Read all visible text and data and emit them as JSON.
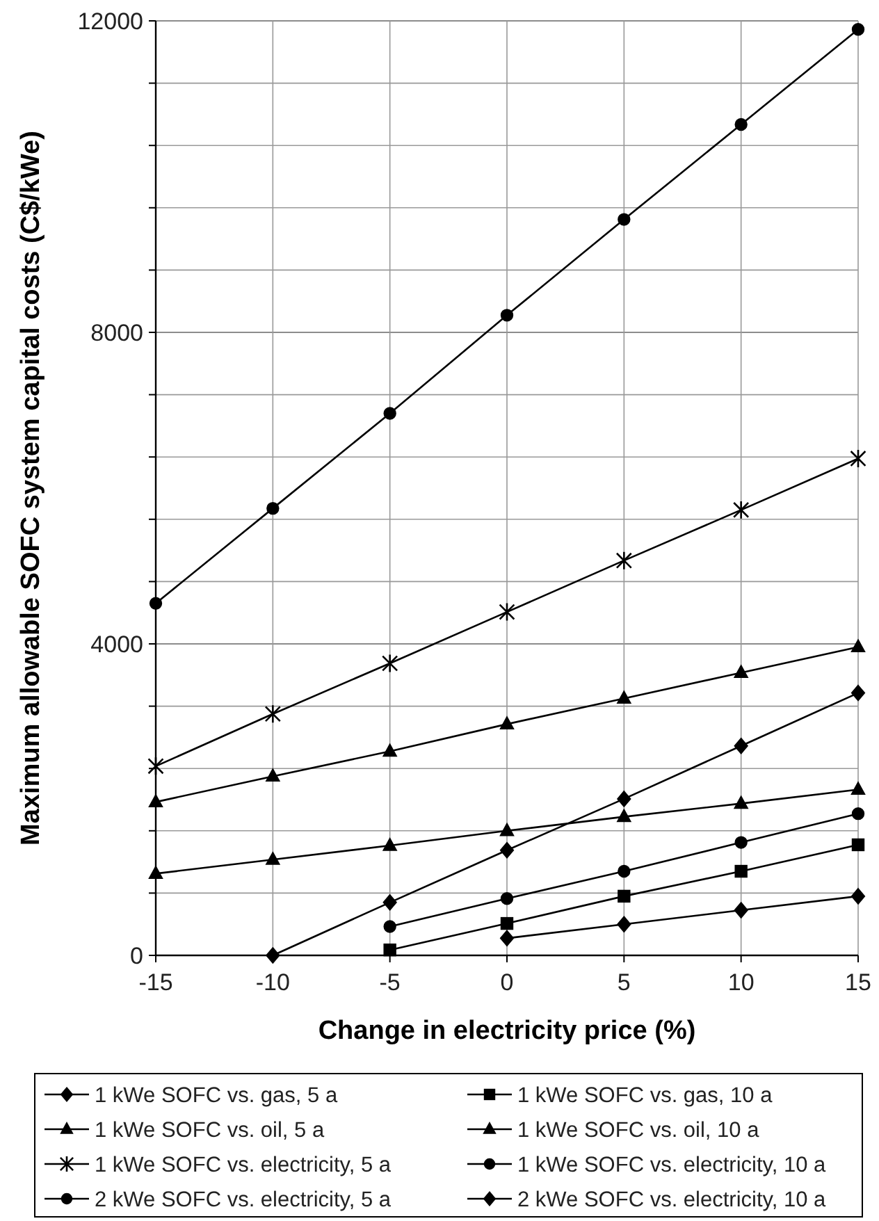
{
  "chart_data": {
    "type": "line",
    "xlabel": "Change in electricity price (%)",
    "ylabel": "Maximum allowable SOFC system capital costs (C$/kWe)",
    "x": [
      -15,
      -10,
      -5,
      0,
      5,
      10,
      15
    ],
    "xlim": [
      -15,
      15
    ],
    "xticks": [
      -15,
      -10,
      -5,
      0,
      5,
      10,
      15
    ],
    "ylim": [
      0,
      12000
    ],
    "yticks": [
      0,
      {
        "value": 800,
        "label": null
      },
      {
        "value": 1600,
        "label": null
      },
      {
        "value": 2400,
        "label": null
      },
      {
        "value": 3200,
        "label": null
      },
      4000,
      {
        "value": 4800,
        "label": null
      },
      {
        "value": 5600,
        "label": null
      },
      {
        "value": 6400,
        "label": null
      },
      {
        "value": 7200,
        "label": null
      },
      8000,
      {
        "value": 8800,
        "label": null
      },
      {
        "value": 9600,
        "label": null
      },
      {
        "value": 10400,
        "label": null
      },
      {
        "value": 11200,
        "label": null
      },
      12000
    ],
    "grid": true,
    "legend": "bottom",
    "line_style": "solid",
    "series": [
      {
        "name": "1 kWe SOFC vs. gas, 5 a",
        "color": "#000000",
        "marker": "diamond",
        "values": [
          null,
          null,
          null,
          220,
          400,
          580,
          760
        ]
      },
      {
        "name": "1 kWe SOFC vs. gas, 10 a",
        "color": "#000000",
        "marker": "square",
        "values": [
          null,
          null,
          70,
          410,
          760,
          1080,
          1420
        ]
      },
      {
        "name": "1 kWe SOFC vs. oil, 5 a",
        "color": "#000000",
        "marker": "triangle",
        "values": [
          1050,
          1230,
          1410,
          1600,
          1780,
          1950,
          2130
        ]
      },
      {
        "name": "1 kWe SOFC vs. oil, 10 a",
        "color": "#000000",
        "marker": "triangle",
        "values": [
          1970,
          2300,
          2620,
          2970,
          3300,
          3630,
          3960
        ]
      },
      {
        "name": "1 kWe SOFC vs. electricity, 5 a",
        "color": "#000000",
        "marker": "cross",
        "values": [
          2430,
          3100,
          3750,
          4410,
          5070,
          5720,
          6380
        ]
      },
      {
        "name": "1 kWe SOFC vs. electricity, 10 a",
        "color": "#000000",
        "marker": "circle",
        "values": [
          4520,
          5740,
          6960,
          8220,
          9450,
          10670,
          11890
        ]
      },
      {
        "name": "2 kWe SOFC vs. electricity, 5 a",
        "color": "#000000",
        "marker": "circle",
        "values": [
          null,
          null,
          370,
          730,
          1080,
          1450,
          1820
        ]
      },
      {
        "name": "2 kWe SOFC vs. electricity, 10 a",
        "color": "#000000",
        "marker": "diamond",
        "values": [
          null,
          0,
          680,
          1350,
          2010,
          2690,
          3370
        ]
      }
    ]
  }
}
